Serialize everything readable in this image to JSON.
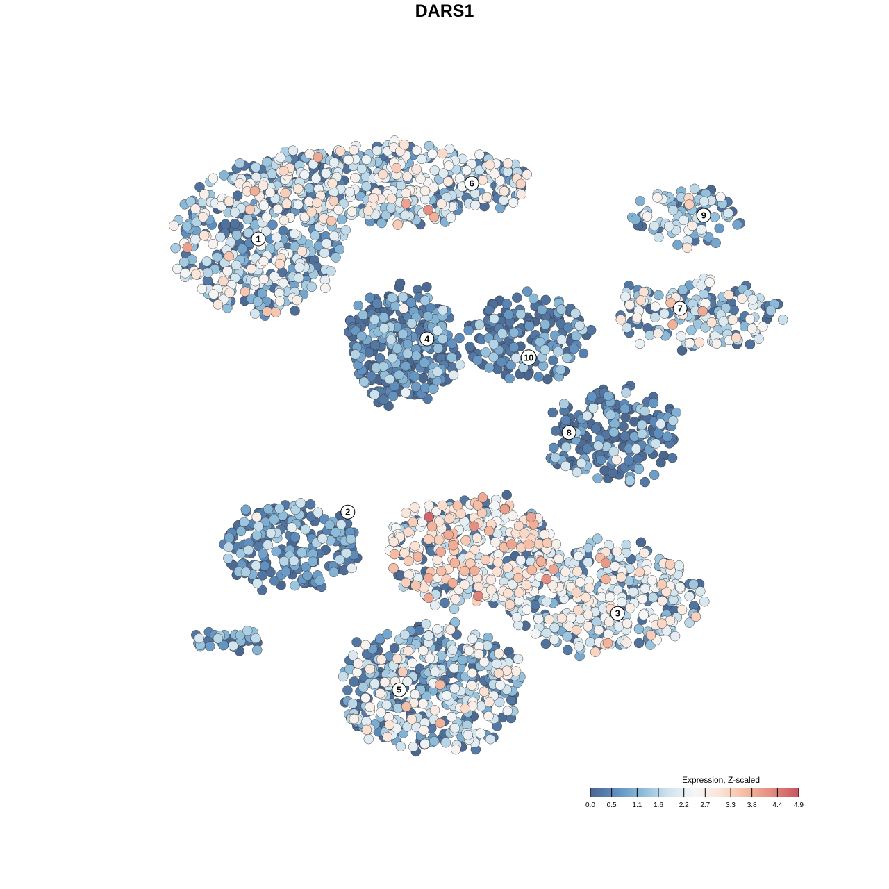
{
  "chart_data": {
    "type": "scatter",
    "title": "DARS1",
    "xlabel": "",
    "ylabel": "",
    "grid": false,
    "legend": {
      "title": "Expression, Z-scaled",
      "placement": "bottom-right",
      "ticks": [
        "0.0",
        "0.5",
        "1.1",
        "1.6",
        "2.2",
        "2.7",
        "3.3",
        "3.8",
        "4.4",
        "4.9"
      ],
      "range": [
        0.0,
        4.9
      ],
      "colors": [
        "#4a6790",
        "#5f8fbf",
        "#8dbcd9",
        "#cfe3ee",
        "#f6f6f6",
        "#fbe3d6",
        "#f4b9a0",
        "#e2897d",
        "#c8545f"
      ]
    },
    "clusters": [
      {
        "label": "1",
        "center": [
          -6.7,
          7.4
        ],
        "spread": [
          3.0,
          2.7
        ],
        "mean_expression": 1.6,
        "count": 420
      },
      {
        "label": "6",
        "center": [
          -2.0,
          9.4
        ],
        "spread": [
          5.0,
          1.4
        ],
        "mean_expression": 1.7,
        "count": 480
      },
      {
        "label": "4",
        "center": [
          -1.5,
          3.6
        ],
        "spread": [
          2.0,
          2.0
        ],
        "mean_expression": 0.4,
        "count": 330
      },
      {
        "label": "9",
        "center": [
          8.7,
          8.2
        ],
        "spread": [
          1.9,
          1.0
        ],
        "mean_expression": 1.5,
        "count": 90
      },
      {
        "label": "7",
        "center": [
          9.0,
          4.7
        ],
        "spread": [
          3.0,
          1.2
        ],
        "mean_expression": 1.7,
        "count": 170
      },
      {
        "label": "10",
        "center": [
          3.0,
          3.8
        ],
        "spread": [
          2.3,
          1.5
        ],
        "mean_expression": 0.4,
        "count": 170
      },
      {
        "label": "8",
        "center": [
          6.0,
          0.3
        ],
        "spread": [
          2.5,
          1.6
        ],
        "mean_expression": 0.4,
        "count": 220
      },
      {
        "label": "2",
        "center": [
          -5.5,
          -3.6
        ],
        "spread": [
          2.4,
          1.5
        ],
        "mean_expression": 0.5,
        "count": 230
      },
      {
        "label": "3",
        "center": [
          5.6,
          -5.5
        ],
        "spread": [
          3.6,
          1.9
        ],
        "mean_expression": 1.9,
        "count": 430
      },
      {
        "label": "5",
        "center": [
          -0.5,
          -8.8
        ],
        "spread": [
          3.4,
          2.2
        ],
        "mean_expression": 1.5,
        "count": 470
      },
      {
        "label": "",
        "center": [
          1.0,
          -3.8
        ],
        "spread": [
          3.0,
          1.9
        ],
        "mean_expression": 2.5,
        "count": 380
      },
      {
        "label": "",
        "center": [
          -7.7,
          -7.0
        ],
        "spread": [
          1.4,
          0.5
        ],
        "mean_expression": 0.8,
        "count": 35
      }
    ],
    "cluster_labels": [
      {
        "label": "1",
        "x": -6.7,
        "y": 7.4
      },
      {
        "label": "6",
        "x": 0.98,
        "y": 9.4
      },
      {
        "label": "9",
        "x": 9.33,
        "y": 8.25
      },
      {
        "label": "4",
        "x": -0.63,
        "y": 3.8
      },
      {
        "label": "10",
        "x": 3.03,
        "y": 3.13
      },
      {
        "label": "7",
        "x": 8.48,
        "y": 4.9
      },
      {
        "label": "8",
        "x": 4.48,
        "y": 0.43
      },
      {
        "label": "2",
        "x": -3.48,
        "y": -2.43
      },
      {
        "label": "3",
        "x": 6.23,
        "y": -6.08
      },
      {
        "label": "5",
        "x": -1.63,
        "y": -8.83
      }
    ]
  }
}
